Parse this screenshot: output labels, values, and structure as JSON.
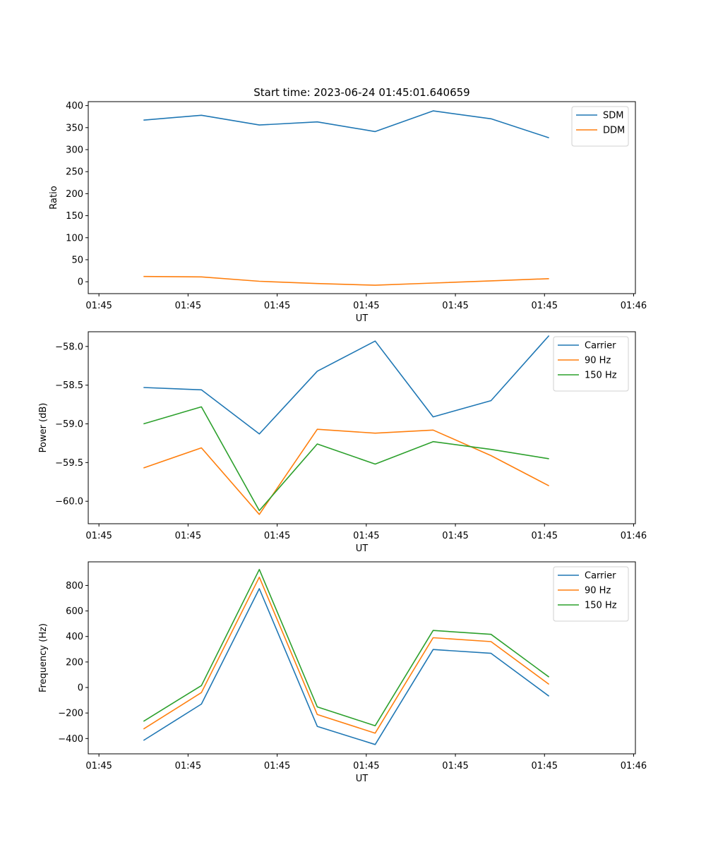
{
  "chart_data": [
    {
      "type": "line",
      "title": "Start time: 2023-06-24 01:45:01.640659",
      "xlabel": "UT",
      "ylabel": "Ratio",
      "x_tick_labels": [
        "01:45",
        "01:45",
        "01:45",
        "01:45",
        "01:45",
        "01:45",
        "01:46"
      ],
      "x_ticks": [
        0,
        1,
        2,
        3,
        4,
        5,
        6
      ],
      "xlim": [
        -0.12,
        6.02
      ],
      "x": [
        0.5,
        1.15,
        1.8,
        2.45,
        3.1,
        3.75,
        4.4,
        5.05
      ],
      "y_ticks": [
        0,
        50,
        100,
        150,
        200,
        250,
        300,
        350,
        400
      ],
      "ylim": [
        -27,
        409
      ],
      "grid": false,
      "legend_position": "upper-right",
      "series": [
        {
          "name": "SDM",
          "color": "#1f77b4",
          "values": [
            367,
            378,
            356,
            363,
            341,
            388,
            370,
            327
          ]
        },
        {
          "name": "DDM",
          "color": "#ff7f0e",
          "values": [
            12,
            11,
            1,
            -4,
            -8,
            -3,
            2,
            7
          ]
        }
      ]
    },
    {
      "type": "line",
      "title": "",
      "xlabel": "UT",
      "ylabel": "Power (dB)",
      "x_tick_labels": [
        "01:45",
        "01:45",
        "01:45",
        "01:45",
        "01:45",
        "01:45",
        "01:46"
      ],
      "x_ticks": [
        0,
        1,
        2,
        3,
        4,
        5,
        6
      ],
      "xlim": [
        -0.12,
        6.02
      ],
      "x": [
        0.5,
        1.15,
        1.8,
        2.45,
        3.1,
        3.75,
        4.4,
        5.05
      ],
      "y_ticks": [
        -60.0,
        -59.5,
        -59.0,
        -58.5,
        -58.0
      ],
      "y_tick_labels": [
        "−60.0",
        "−59.5",
        "−59.0",
        "−58.5",
        "−58.0"
      ],
      "ylim": [
        -60.29,
        -57.81
      ],
      "grid": false,
      "legend_position": "upper-right",
      "series": [
        {
          "name": "Carrier",
          "color": "#1f77b4",
          "values": [
            -58.53,
            -58.56,
            -59.13,
            -58.32,
            -57.93,
            -58.91,
            -58.7,
            -57.86
          ]
        },
        {
          "name": "90 Hz",
          "color": "#ff7f0e",
          "values": [
            -59.57,
            -59.31,
            -60.17,
            -59.07,
            -59.12,
            -59.08,
            -59.41,
            -59.8
          ]
        },
        {
          "name": "150 Hz",
          "color": "#2ca02c",
          "values": [
            -59.0,
            -58.78,
            -60.12,
            -59.26,
            -59.52,
            -59.23,
            -59.33,
            -59.45
          ]
        }
      ]
    },
    {
      "type": "line",
      "title": "",
      "xlabel": "UT",
      "ylabel": "Frequency (Hz)",
      "x_tick_labels": [
        "01:45",
        "01:45",
        "01:45",
        "01:45",
        "01:45",
        "01:45",
        "01:46"
      ],
      "x_ticks": [
        0,
        1,
        2,
        3,
        4,
        5,
        6
      ],
      "xlim": [
        -0.12,
        6.02
      ],
      "x": [
        0.5,
        1.15,
        1.8,
        2.45,
        3.1,
        3.75,
        4.4,
        5.05
      ],
      "y_ticks": [
        -400,
        -200,
        0,
        200,
        400,
        600,
        800
      ],
      "y_tick_labels": [
        "−400",
        "−200",
        "0",
        "200",
        "400",
        "600",
        "800"
      ],
      "ylim": [
        -520,
        985
      ],
      "grid": false,
      "legend_position": "upper-right",
      "series": [
        {
          "name": "Carrier",
          "color": "#1f77b4",
          "values": [
            -415,
            -130,
            775,
            -305,
            -447,
            298,
            268,
            -68
          ]
        },
        {
          "name": "90 Hz",
          "color": "#ff7f0e",
          "values": [
            -325,
            -40,
            865,
            -212,
            -358,
            390,
            360,
            25
          ]
        },
        {
          "name": "150 Hz",
          "color": "#2ca02c",
          "values": [
            -265,
            15,
            925,
            -152,
            -300,
            447,
            417,
            82
          ]
        }
      ]
    }
  ]
}
